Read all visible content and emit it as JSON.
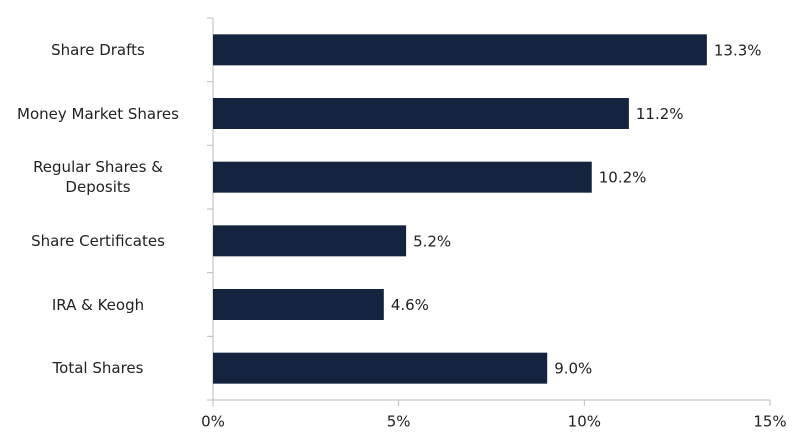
{
  "chart_data": {
    "type": "hbar",
    "categories": [
      "Share Drafts",
      "Money Market Shares",
      "Regular Shares &\nDeposits",
      "Share Certificates",
      "IRA & Keogh",
      "Total Shares"
    ],
    "values": [
      13.3,
      11.2,
      10.2,
      5.2,
      4.6,
      9.0
    ],
    "value_labels": [
      "13.3%",
      "11.2%",
      "10.2%",
      "5.2%",
      "4.6%",
      "9.0%"
    ],
    "color": "#14243f",
    "xlim": [
      0,
      15
    ],
    "xticks": [
      {
        "value": 0,
        "label": "0%"
      },
      {
        "value": 5,
        "label": "5%"
      },
      {
        "value": 10,
        "label": "10%"
      },
      {
        "value": 15,
        "label": "15%"
      }
    ]
  }
}
